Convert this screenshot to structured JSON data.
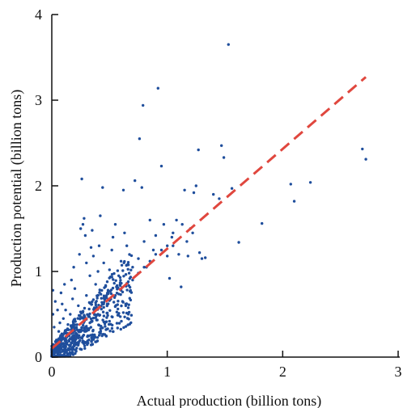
{
  "chart_data": {
    "type": "scatter",
    "title": "",
    "xlabel": "Actual production (billion tons)",
    "ylabel": "Production potential (billion tons)",
    "xlim": [
      0,
      3
    ],
    "ylim": [
      0,
      4
    ],
    "x_ticks": [
      "0",
      "1",
      "2",
      "3"
    ],
    "y_ticks": [
      "0",
      "1",
      "2",
      "3",
      "4"
    ],
    "grid": false,
    "legend": "none",
    "colors": {
      "points": "#1f4e9c",
      "fit_line": "#e0473e"
    },
    "fit_line": {
      "style": "dashed",
      "x": [
        0,
        2.72
      ],
      "y": [
        0.1,
        3.27
      ]
    },
    "point_cloud_note": "",
    "series": [
      {
        "values": [
          [
            0.02,
            0.05
          ],
          [
            0.03,
            0.08
          ],
          [
            0.05,
            0.12
          ],
          [
            0.04,
            0.2
          ],
          [
            0.06,
            0.3
          ],
          [
            0.02,
            0.35
          ],
          [
            0.01,
            0.5
          ],
          [
            0.01,
            0.78
          ],
          [
            0.03,
            0.65
          ],
          [
            0.05,
            0.55
          ],
          [
            0.07,
            0.4
          ],
          [
            0.08,
            0.22
          ],
          [
            0.1,
            0.16
          ],
          [
            0.12,
            0.3
          ],
          [
            0.1,
            0.45
          ],
          [
            0.09,
            0.62
          ],
          [
            0.08,
            0.75
          ],
          [
            0.11,
            0.85
          ],
          [
            0.12,
            0.55
          ],
          [
            0.14,
            0.38
          ],
          [
            0.15,
            0.25
          ],
          [
            0.16,
            0.5
          ],
          [
            0.18,
            0.68
          ],
          [
            0.17,
            0.9
          ],
          [
            0.19,
            1.05
          ],
          [
            0.2,
            0.8
          ],
          [
            0.2,
            0.42
          ],
          [
            0.22,
            0.32
          ],
          [
            0.23,
            0.6
          ],
          [
            0.24,
            1.2
          ],
          [
            0.25,
            1.5
          ],
          [
            0.26,
            2.08
          ],
          [
            0.27,
            1.55
          ],
          [
            0.28,
            1.62
          ],
          [
            0.29,
            1.42
          ],
          [
            0.3,
            1.1
          ],
          [
            0.3,
            0.72
          ],
          [
            0.32,
            0.48
          ],
          [
            0.33,
            0.95
          ],
          [
            0.34,
            1.28
          ],
          [
            0.35,
            1.48
          ],
          [
            0.36,
            1.18
          ],
          [
            0.38,
            0.85
          ],
          [
            0.38,
            0.55
          ],
          [
            0.4,
            1.0
          ],
          [
            0.41,
            1.3
          ],
          [
            0.42,
            1.65
          ],
          [
            0.44,
            1.98
          ],
          [
            0.45,
            1.1
          ],
          [
            0.46,
            0.7
          ],
          [
            0.48,
            0.88
          ],
          [
            0.5,
            1.02
          ],
          [
            0.52,
            1.25
          ],
          [
            0.53,
            1.4
          ],
          [
            0.55,
            1.55
          ],
          [
            0.56,
            0.82
          ],
          [
            0.58,
            0.95
          ],
          [
            0.6,
            1.12
          ],
          [
            0.62,
            1.95
          ],
          [
            0.63,
            1.45
          ],
          [
            0.65,
            1.3
          ],
          [
            0.67,
            0.98
          ],
          [
            0.7,
            1.05
          ],
          [
            0.72,
            2.06
          ],
          [
            0.75,
            1.15
          ],
          [
            0.76,
            2.55
          ],
          [
            0.78,
            1.98
          ],
          [
            0.79,
            2.94
          ],
          [
            0.8,
            1.35
          ],
          [
            0.82,
            1.05
          ],
          [
            0.85,
            1.6
          ],
          [
            0.88,
            1.25
          ],
          [
            0.9,
            1.42
          ],
          [
            0.92,
            3.14
          ],
          [
            0.95,
            2.23
          ],
          [
            0.97,
            1.55
          ],
          [
            1.0,
            1.18
          ],
          [
            1.02,
            0.92
          ],
          [
            1.04,
            1.4
          ],
          [
            1.05,
            1.3
          ],
          [
            1.08,
            1.6
          ],
          [
            1.1,
            1.2
          ],
          [
            1.12,
            0.82
          ],
          [
            1.13,
            1.55
          ],
          [
            1.15,
            1.95
          ],
          [
            1.17,
            1.35
          ],
          [
            1.18,
            1.18
          ],
          [
            1.2,
            1.5
          ],
          [
            1.22,
            1.45
          ],
          [
            1.23,
            1.92
          ],
          [
            1.25,
            2.0
          ],
          [
            1.27,
            2.42
          ],
          [
            1.28,
            1.22
          ],
          [
            1.3,
            1.15
          ],
          [
            1.33,
            1.16
          ],
          [
            1.4,
            1.9
          ],
          [
            1.45,
            1.85
          ],
          [
            1.47,
            2.47
          ],
          [
            1.49,
            2.33
          ],
          [
            1.53,
            3.65
          ],
          [
            1.56,
            1.97
          ],
          [
            1.62,
            1.34
          ],
          [
            1.82,
            1.56
          ],
          [
            2.07,
            2.02
          ],
          [
            2.1,
            1.82
          ],
          [
            2.24,
            2.04
          ],
          [
            2.69,
            2.43
          ],
          [
            2.72,
            2.31
          ],
          [
            0.05,
            0.06
          ],
          [
            0.08,
            0.1
          ],
          [
            0.1,
            0.12
          ],
          [
            0.13,
            0.15
          ],
          [
            0.15,
            0.14
          ],
          [
            0.18,
            0.2
          ],
          [
            0.2,
            0.22
          ],
          [
            0.22,
            0.26
          ],
          [
            0.25,
            0.3
          ],
          [
            0.28,
            0.34
          ],
          [
            0.3,
            0.36
          ],
          [
            0.33,
            0.4
          ],
          [
            0.35,
            0.42
          ],
          [
            0.38,
            0.46
          ],
          [
            0.4,
            0.5
          ],
          [
            0.43,
            0.56
          ],
          [
            0.45,
            0.58
          ],
          [
            0.48,
            0.62
          ],
          [
            0.5,
            0.66
          ],
          [
            0.55,
            0.72
          ],
          [
            0.6,
            0.78
          ],
          [
            0.65,
            0.86
          ],
          [
            0.7,
            0.9
          ],
          [
            0.75,
            0.98
          ],
          [
            0.8,
            1.05
          ],
          [
            0.85,
            1.12
          ],
          [
            0.9,
            1.2
          ],
          [
            0.95,
            1.25
          ],
          [
            1.0,
            1.3
          ],
          [
            1.05,
            1.45
          ]
        ]
      }
    ]
  }
}
